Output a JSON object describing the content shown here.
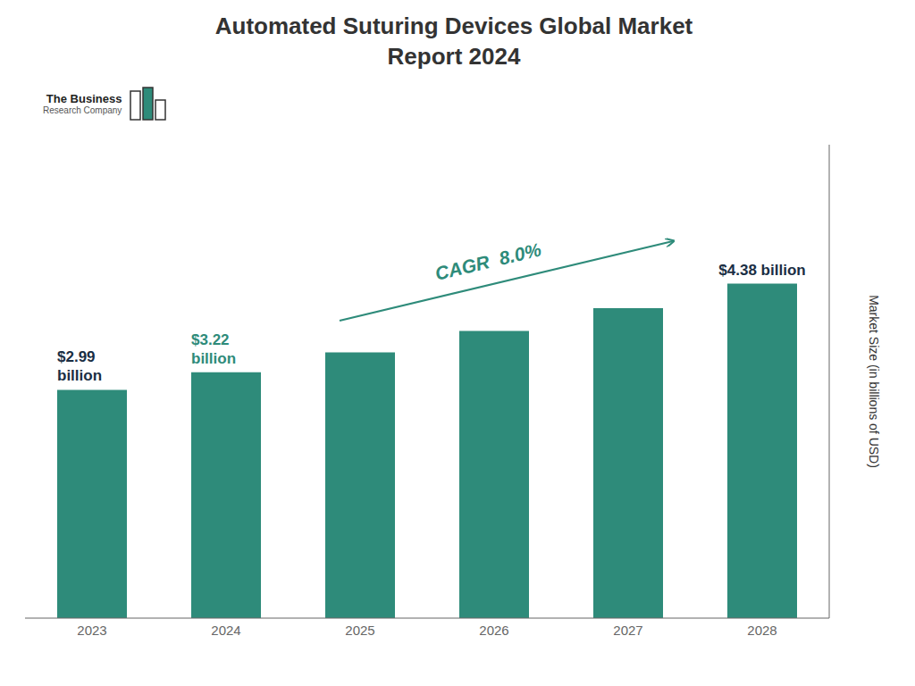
{
  "chart_data": {
    "type": "bar",
    "title": "Automated Suturing Devices Global Market\nReport 2024",
    "categories": [
      "2023",
      "2024",
      "2025",
      "2026",
      "2027",
      "2028"
    ],
    "values": [
      2.99,
      3.22,
      3.48,
      3.76,
      4.06,
      4.38
    ],
    "color": "#2e8b7a",
    "y_label": "Market Size (in billions of USD)",
    "ylim": [
      0,
      6.2
    ],
    "grid": false,
    "tick_labels": "x",
    "annotations": [
      {
        "text": "$2.99\nbillion",
        "category": "2023",
        "color": "#1a2e44"
      },
      {
        "text": "$3.22\nbillion",
        "category": "2024",
        "color": "#2e8b7a"
      },
      {
        "text": "$4.38 billion",
        "category": "2028",
        "color": "#1a2e44"
      },
      {
        "type": "arrow",
        "text": "CAGR  8.0%",
        "color": "#2e8b7a"
      },
      {
        "type": "logo",
        "text": [
          "The Business",
          "Research Company"
        ]
      }
    ]
  }
}
